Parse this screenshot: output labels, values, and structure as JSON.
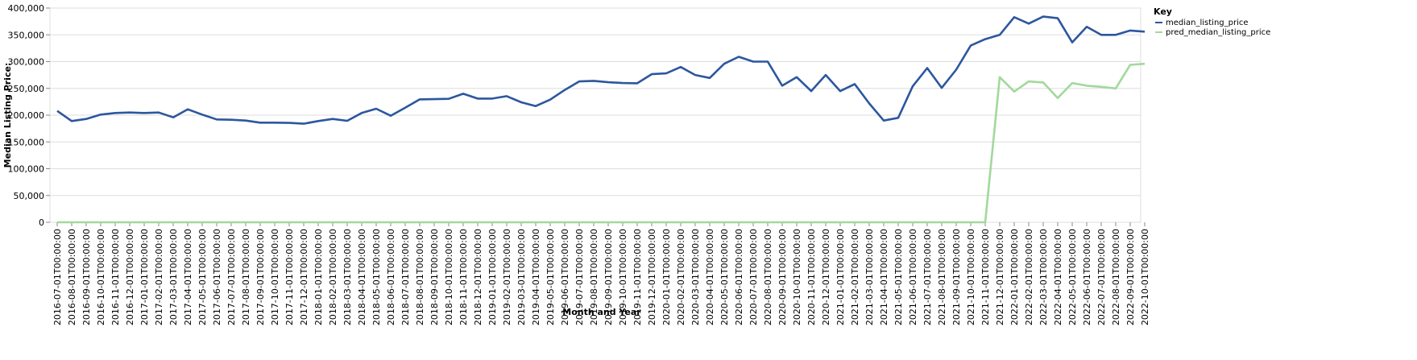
{
  "chart_data": {
    "type": "line",
    "xlabel": "Month and Year",
    "ylabel": "Median Listing Price:",
    "ylim": [
      0,
      400000
    ],
    "y_ticks": [
      "0",
      "50,000",
      "100,000",
      "150,000",
      "200,000",
      "250,000",
      "300,000",
      "350,000",
      "400,000"
    ],
    "grid": true,
    "legend": {
      "title": "Key",
      "position": "top-right"
    },
    "x": [
      "2016-07-01T00:00:00",
      "2016-08-01T00:00:00",
      "2016-09-01T00:00:00",
      "2016-10-01T00:00:00",
      "2016-11-01T00:00:00",
      "2016-12-01T00:00:00",
      "2017-01-01T00:00:00",
      "2017-02-01T00:00:00",
      "2017-03-01T00:00:00",
      "2017-04-01T00:00:00",
      "2017-05-01T00:00:00",
      "2017-06-01T00:00:00",
      "2017-07-01T00:00:00",
      "2017-08-01T00:00:00",
      "2017-09-01T00:00:00",
      "2017-10-01T00:00:00",
      "2017-11-01T00:00:00",
      "2017-12-01T00:00:00",
      "2018-01-01T00:00:00",
      "2018-02-01T00:00:00",
      "2018-03-01T00:00:00",
      "2018-04-01T00:00:00",
      "2018-05-01T00:00:00",
      "2018-06-01T00:00:00",
      "2018-07-01T00:00:00",
      "2018-08-01T00:00:00",
      "2018-09-01T00:00:00",
      "2018-10-01T00:00:00",
      "2018-11-01T00:00:00",
      "2018-12-01T00:00:00",
      "2019-01-01T00:00:00",
      "2019-02-01T00:00:00",
      "2019-03-01T00:00:00",
      "2019-04-01T00:00:00",
      "2019-05-01T00:00:00",
      "2019-06-01T00:00:00",
      "2019-07-01T00:00:00",
      "2019-08-01T00:00:00",
      "2019-09-01T00:00:00",
      "2019-10-01T00:00:00",
      "2019-11-01T00:00:00",
      "2019-12-01T00:00:00",
      "2020-01-01T00:00:00",
      "2020-02-01T00:00:00",
      "2020-03-01T00:00:00",
      "2020-04-01T00:00:00",
      "2020-05-01T00:00:00",
      "2020-06-01T00:00:00",
      "2020-07-01T00:00:00",
      "2020-08-01T00:00:00",
      "2020-09-01T00:00:00",
      "2020-10-01T00:00:00",
      "2020-11-01T00:00:00",
      "2020-12-01T00:00:00",
      "2021-01-01T00:00:00",
      "2021-02-01T00:00:00",
      "2021-03-01T00:00:00",
      "2021-04-01T00:00:00",
      "2021-05-01T00:00:00",
      "2021-06-01T00:00:00",
      "2021-07-01T00:00:00",
      "2021-08-01T00:00:00",
      "2021-09-01T00:00:00",
      "2021-10-01T00:00:00",
      "2021-11-01T00:00:00",
      "2021-12-01T00:00:00",
      "2022-01-01T00:00:00",
      "2022-02-01T00:00:00",
      "2022-03-01T00:00:00",
      "2022-04-01T00:00:00",
      "2022-05-01T00:00:00",
      "2022-06-01T00:00:00",
      "2022-07-01T00:00:00",
      "2022-08-01T00:00:00",
      "2022-09-01T00:00:00",
      "2022-10-01T00:00:00"
    ],
    "series": [
      {
        "name": "median_listing_price",
        "color": "#2c579e",
        "values": [
          208000,
          189000,
          193000,
          201000,
          204000,
          205000,
          204000,
          205000,
          196000,
          211000,
          201000,
          192000,
          191500,
          190000,
          186000,
          186000,
          185500,
          184000,
          189000,
          193000,
          189500,
          204000,
          212000,
          199000,
          214000,
          229500,
          230000,
          230500,
          240000,
          231000,
          231000,
          235500,
          224000,
          217000,
          229000,
          247000,
          263000,
          264000,
          261500,
          260000,
          259500,
          276500,
          278000,
          290000,
          275000,
          269500,
          296000,
          309000,
          300000,
          300000,
          255000,
          271000,
          245000,
          275000,
          245000,
          258000,
          222000,
          190000,
          195000,
          254000,
          288000,
          251000,
          285000,
          330000,
          342000,
          350000,
          383000,
          371000,
          384000,
          381000,
          336000,
          365000,
          350000,
          350000,
          358000,
          356000
        ]
      },
      {
        "name": "pred_median_listing_price",
        "color": "#a1d99b",
        "values": [
          0,
          0,
          0,
          0,
          0,
          0,
          0,
          0,
          0,
          0,
          0,
          0,
          0,
          0,
          0,
          0,
          0,
          0,
          0,
          0,
          0,
          0,
          0,
          0,
          0,
          0,
          0,
          0,
          0,
          0,
          0,
          0,
          0,
          0,
          0,
          0,
          0,
          0,
          0,
          0,
          0,
          0,
          0,
          0,
          0,
          0,
          0,
          0,
          0,
          0,
          0,
          0,
          0,
          0,
          0,
          0,
          0,
          0,
          0,
          0,
          0,
          0,
          0,
          0,
          0,
          271000,
          244000,
          263000,
          261000,
          232000,
          260000,
          255000,
          253000,
          250000,
          294000,
          296000
        ]
      }
    ]
  }
}
